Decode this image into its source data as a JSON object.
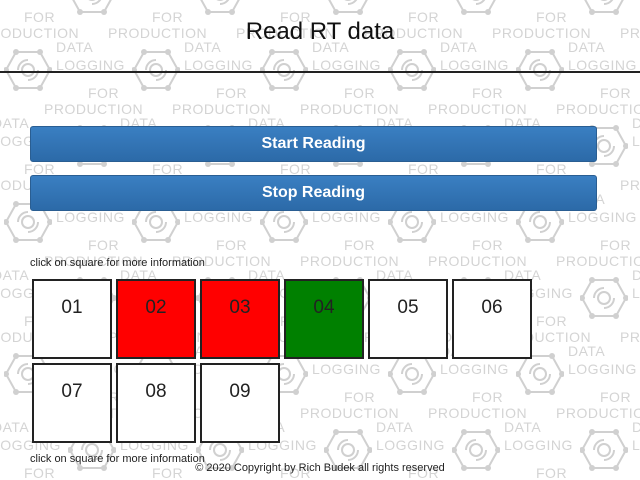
{
  "header": {
    "title": "Read RT data"
  },
  "buttons": {
    "start_label": "Start Reading",
    "stop_label": "Stop Reading"
  },
  "hints": {
    "top": "click on square for more information",
    "bottom": "click on square for more information"
  },
  "squares": [
    {
      "label": "01",
      "status_color": "#ffffff"
    },
    {
      "label": "02",
      "status_color": "#ff0000"
    },
    {
      "label": "03",
      "status_color": "#ff0000"
    },
    {
      "label": "04",
      "status_color": "#008000"
    },
    {
      "label": "05",
      "status_color": "#ffffff"
    },
    {
      "label": "06",
      "status_color": "#ffffff"
    },
    {
      "label": "07",
      "status_color": "#ffffff"
    },
    {
      "label": "08",
      "status_color": "#ffffff"
    },
    {
      "label": "09",
      "status_color": "#ffffff"
    }
  ],
  "footer": {
    "copyright": "© 2020 Copyright by Rich Budek all rights reserved"
  },
  "watermark": {
    "line1": "DATA",
    "line2": "LOGGING",
    "line3": "FOR",
    "line4": "PRODUCTION",
    "icon": "data-logging-network-icon"
  },
  "colors": {
    "button_blue": "#3a7fc2",
    "status_red": "#ff0000",
    "status_green": "#008000"
  }
}
